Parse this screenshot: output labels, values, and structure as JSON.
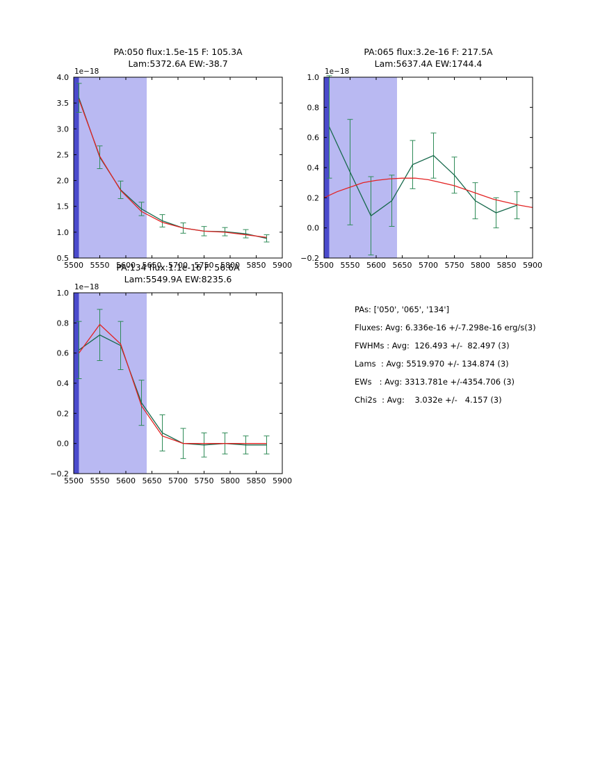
{
  "page": {
    "background": "#ffffff"
  },
  "stats": {
    "lines": [
      "PAs: ['050', '065', '134']",
      "Fluxes: Avg: 6.336e-16 +/-7.298e-16 erg/s(3)",
      "FWHMs : Avg:  126.493 +/-  82.497 (3)",
      "Lams  : Avg: 5519.970 +/- 134.874 (3)",
      "EWs   : Avg: 3313.781e +/-4354.706 (3)",
      "Chi2s  : Avg:    3.032e +/-   4.157 (3)"
    ]
  },
  "chart_data": [
    {
      "type": "line",
      "title_line1": "PA:050 flux:1.5e-15 F: 105.3A",
      "title_line2": "Lam:5372.6A EW:-38.7",
      "offset_label": "1e−18",
      "xlim": [
        5500,
        5900
      ],
      "ylim": [
        0.5,
        4.0
      ],
      "grid": false,
      "legend": null,
      "xticks": [
        5500,
        5550,
        5600,
        5650,
        5700,
        5750,
        5800,
        5850,
        5900
      ],
      "xtick_labels": [
        "5500",
        "5550",
        "5600",
        "5650",
        "5700",
        "5750",
        "5800",
        "5850",
        "5900"
      ],
      "yticks": [
        0.5,
        1.0,
        1.5,
        2.0,
        2.5,
        3.0,
        3.5,
        4.0
      ],
      "ytick_labels": [
        "0.5",
        "1.0",
        "1.5",
        "2.0",
        "2.5",
        "3.0",
        "3.5",
        "4.0"
      ],
      "shaded_regions": [
        {
          "x0": 5500,
          "x1": 5640,
          "color": "#b9b9f2"
        },
        {
          "x0": 5500,
          "x1": 5510,
          "color": "#4a4acc"
        }
      ],
      "x": [
        5510,
        5550,
        5590,
        5630,
        5670,
        5710,
        5750,
        5790,
        5830,
        5870
      ],
      "series": [
        {
          "name": "spectrum",
          "color": "#17694c",
          "error_color": "#2e8b57",
          "values": [
            3.6,
            2.45,
            1.82,
            1.45,
            1.22,
            1.08,
            1.02,
            1.01,
            0.97,
            0.88
          ],
          "errors": [
            0.28,
            0.22,
            0.17,
            0.13,
            0.12,
            0.1,
            0.09,
            0.08,
            0.08,
            0.07
          ]
        },
        {
          "name": "fit",
          "color": "#e32222",
          "values": [
            3.57,
            2.47,
            1.81,
            1.4,
            1.19,
            1.08,
            1.02,
            1.0,
            0.95,
            0.9
          ]
        }
      ]
    },
    {
      "type": "line",
      "title_line1": "PA:065 flux:3.2e-16 F: 217.5A",
      "title_line2": "Lam:5637.4A EW:1744.4",
      "offset_label": "1e−18",
      "xlim": [
        5500,
        5900
      ],
      "ylim": [
        -0.2,
        1.0
      ],
      "grid": false,
      "legend": null,
      "xticks": [
        5500,
        5550,
        5600,
        5650,
        5700,
        5750,
        5800,
        5850,
        5900
      ],
      "xtick_labels": [
        "5500",
        "5550",
        "5600",
        "5650",
        "5700",
        "5750",
        "5800",
        "5850",
        "5900"
      ],
      "yticks": [
        -0.2,
        0.0,
        0.2,
        0.4,
        0.6,
        0.8,
        1.0
      ],
      "ytick_labels": [
        "−0.2",
        "0.0",
        "0.2",
        "0.4",
        "0.6",
        "0.8",
        "1.0"
      ],
      "shaded_regions": [
        {
          "x0": 5500,
          "x1": 5640,
          "color": "#b9b9f2"
        },
        {
          "x0": 5500,
          "x1": 5510,
          "color": "#4a4acc"
        }
      ],
      "x": [
        5510,
        5550,
        5590,
        5630,
        5670,
        5710,
        5750,
        5790,
        5830,
        5870
      ],
      "series": [
        {
          "name": "spectrum",
          "color": "#17694c",
          "error_color": "#2e8b57",
          "values": [
            0.67,
            0.37,
            0.08,
            0.18,
            0.42,
            0.48,
            0.35,
            0.18,
            0.1,
            0.15
          ],
          "errors": [
            0.34,
            0.35,
            0.26,
            0.17,
            0.16,
            0.15,
            0.12,
            0.12,
            0.1,
            0.09
          ]
        },
        {
          "name": "fit",
          "color": "#e32222",
          "x": [
            5500,
            5525,
            5550,
            5575,
            5600,
            5625,
            5650,
            5675,
            5700,
            5725,
            5750,
            5775,
            5800,
            5825,
            5850,
            5875,
            5900
          ],
          "values": [
            0.2,
            0.24,
            0.27,
            0.3,
            0.315,
            0.325,
            0.33,
            0.33,
            0.32,
            0.3,
            0.28,
            0.25,
            0.22,
            0.19,
            0.17,
            0.15,
            0.135
          ]
        }
      ]
    },
    {
      "type": "line",
      "title_line1": "PA:134 flux:1.1e-16 F: 56.6A",
      "title_line2": "Lam:5549.9A EW:8235.6",
      "offset_label": "1e−18",
      "xlim": [
        5500,
        5900
      ],
      "ylim": [
        -0.2,
        1.0
      ],
      "grid": false,
      "legend": null,
      "xticks": [
        5500,
        5550,
        5600,
        5650,
        5700,
        5750,
        5800,
        5850,
        5900
      ],
      "xtick_labels": [
        "5500",
        "5550",
        "5600",
        "5650",
        "5700",
        "5750",
        "5800",
        "5850",
        "5900"
      ],
      "yticks": [
        -0.2,
        0.0,
        0.2,
        0.4,
        0.6,
        0.8,
        1.0
      ],
      "ytick_labels": [
        "−0.2",
        "0.0",
        "0.2",
        "0.4",
        "0.6",
        "0.8",
        "1.0"
      ],
      "shaded_regions": [
        {
          "x0": 5500,
          "x1": 5640,
          "color": "#b9b9f2"
        },
        {
          "x0": 5500,
          "x1": 5510,
          "color": "#4a4acc"
        }
      ],
      "x": [
        5510,
        5550,
        5590,
        5630,
        5670,
        5710,
        5750,
        5790,
        5830,
        5870
      ],
      "series": [
        {
          "name": "spectrum",
          "color": "#17694c",
          "error_color": "#2e8b57",
          "values": [
            0.62,
            0.72,
            0.65,
            0.27,
            0.07,
            0.0,
            -0.01,
            0.0,
            -0.01,
            -0.01
          ],
          "errors": [
            0.19,
            0.17,
            0.16,
            0.15,
            0.12,
            0.1,
            0.08,
            0.07,
            0.06,
            0.06
          ]
        },
        {
          "name": "fit",
          "color": "#e32222",
          "values": [
            0.6,
            0.79,
            0.66,
            0.25,
            0.05,
            0.0,
            0.0,
            0.0,
            0.0,
            0.0
          ]
        }
      ]
    }
  ]
}
